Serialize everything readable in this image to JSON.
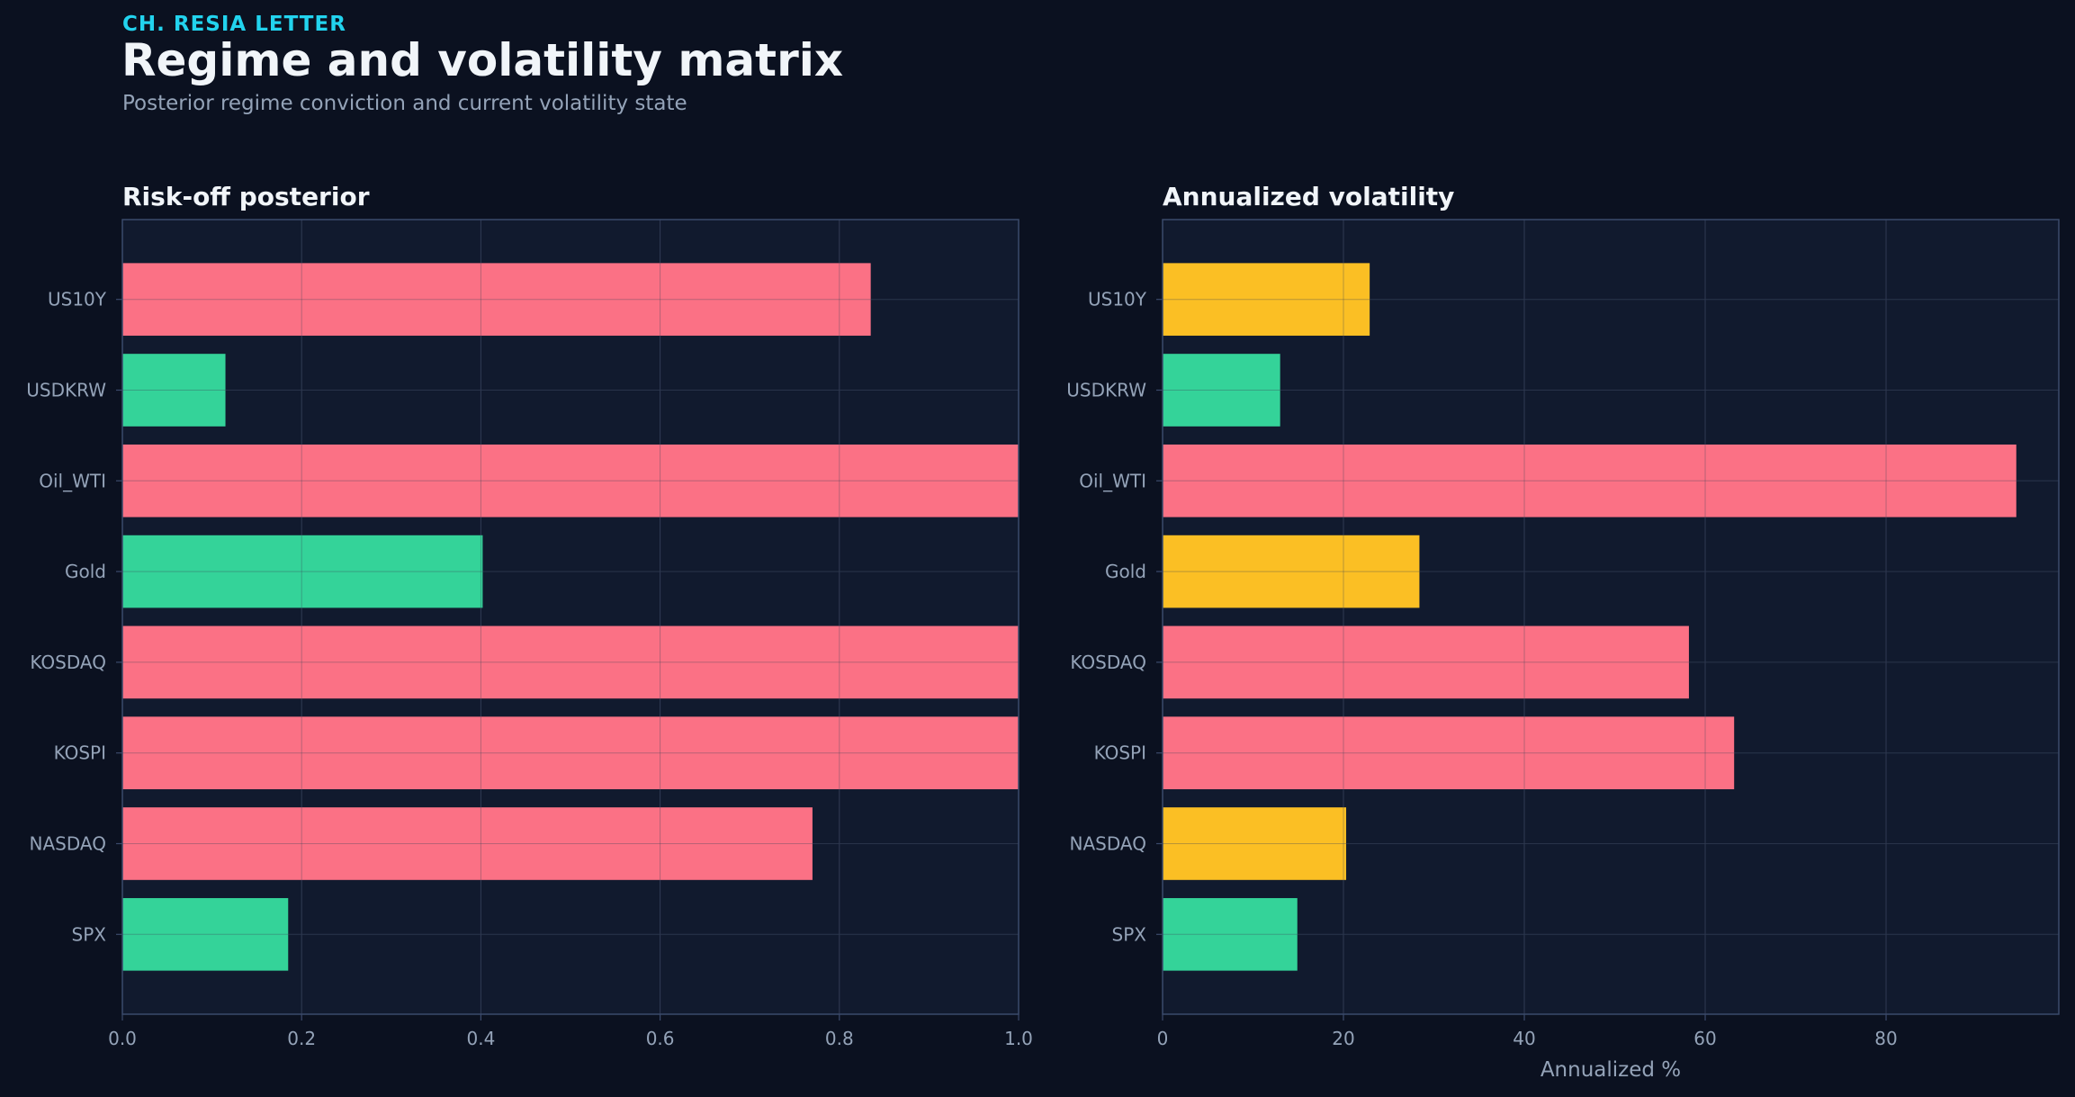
{
  "header": {
    "kicker": "CH. RESIA LETTER",
    "title": "Regime and volatility matrix",
    "subtitle": "Posterior regime conviction and current volatility state"
  },
  "colors": {
    "background": "#0b1120",
    "panel": "#111a2e",
    "risk_off": "#fb7185",
    "neutral": "#fbbf24",
    "risk_on": "#34d399",
    "axis_text": "#94a3b8",
    "title_text": "#f1f5f9"
  },
  "chart_data": [
    {
      "type": "bar",
      "orientation": "horizontal",
      "title": "Risk-off posterior",
      "xlabel": "",
      "ylabel": "",
      "categories": [
        "US10Y",
        "USDKRW",
        "Oil_WTI",
        "Gold",
        "KOSDAQ",
        "KOSPI",
        "NASDAQ",
        "SPX"
      ],
      "values": [
        0.835,
        0.115,
        1.0,
        0.402,
        1.0,
        1.0,
        0.77,
        0.185
      ],
      "bar_colors": [
        "#fb7185",
        "#34d399",
        "#fb7185",
        "#34d399",
        "#fb7185",
        "#fb7185",
        "#fb7185",
        "#34d399"
      ],
      "xlim": [
        0,
        1.0
      ],
      "xticks": [
        0.0,
        0.2,
        0.4,
        0.6,
        0.8,
        1.0
      ],
      "xtick_labels": [
        "0.0",
        "0.2",
        "0.4",
        "0.6",
        "0.8",
        "1.0"
      ],
      "grid": true
    },
    {
      "type": "bar",
      "orientation": "horizontal",
      "title": "Annualized volatility",
      "xlabel": "Annualized %",
      "ylabel": "",
      "categories": [
        "US10Y",
        "USDKRW",
        "Oil_WTI",
        "Gold",
        "KOSDAQ",
        "KOSPI",
        "NASDAQ",
        "SPX"
      ],
      "values": [
        22.9,
        13.0,
        94.4,
        28.4,
        58.2,
        63.2,
        20.3,
        14.9
      ],
      "bar_colors": [
        "#fbbf24",
        "#34d399",
        "#fb7185",
        "#fbbf24",
        "#fb7185",
        "#fb7185",
        "#fbbf24",
        "#34d399"
      ],
      "xlim": [
        0,
        99.1
      ],
      "xticks": [
        0,
        20,
        40,
        60,
        80
      ],
      "xtick_labels": [
        "0",
        "20",
        "40",
        "60",
        "80"
      ],
      "grid": true
    }
  ]
}
